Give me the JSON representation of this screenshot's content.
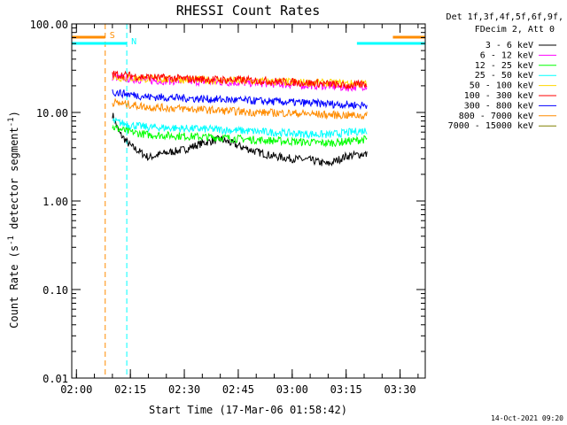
{
  "chart_data": {
    "type": "line",
    "title": "RHESSI Count Rates",
    "xlabel": "Start Time (17-Mar-06 01:58:42)",
    "ylabel": "Count Rate (s⁻¹ detector segment⁻¹)",
    "y_scale": "log",
    "ylim": [
      0.01,
      100
    ],
    "xlim": [
      "01:58:42",
      "03:37:00"
    ],
    "x_ticks": [
      "02:00",
      "02:15",
      "02:30",
      "02:45",
      "03:00",
      "03:15",
      "03:30"
    ],
    "y_ticks": [
      "0.01",
      "0.10",
      "1.00",
      "10.00",
      "100.00"
    ],
    "legend_header": [
      "Det 1f,3f,4f,5f,6f,9f,",
      "FDecim 2, Att 0"
    ],
    "legend_position": "outside-right",
    "timestamp": "14-Oct-2021 09:20",
    "series": [
      {
        "name": "3 - 6 keV",
        "color": "#000000",
        "x": [
          "02:10",
          "02:12",
          "02:15",
          "02:20",
          "02:25",
          "02:30",
          "02:35",
          "02:40",
          "02:45",
          "02:50",
          "02:55",
          "03:00",
          "03:05",
          "03:10",
          "03:15",
          "03:20",
          "03:21"
        ],
        "values": [
          9.5,
          5.8,
          4.2,
          3.1,
          3.5,
          3.8,
          4.5,
          5.0,
          4.2,
          3.6,
          3.2,
          3.0,
          2.9,
          2.6,
          3.2,
          3.4,
          3.3
        ]
      },
      {
        "name": "6 - 12 keV",
        "color": "#ff00ff",
        "x": [
          "02:10",
          "02:20",
          "02:30",
          "02:40",
          "02:50",
          "03:00",
          "03:10",
          "03:15",
          "03:21"
        ],
        "values": [
          25,
          23,
          22.5,
          22,
          21.5,
          20.5,
          20,
          19,
          20
        ]
      },
      {
        "name": "12 - 25 keV",
        "color": "#00ff00",
        "x": [
          "02:10",
          "02:15",
          "02:20",
          "02:30",
          "02:40",
          "02:50",
          "03:00",
          "03:10",
          "03:15",
          "03:21"
        ],
        "values": [
          6.8,
          6.0,
          5.6,
          5.4,
          5.2,
          4.9,
          4.7,
          4.5,
          4.7,
          5.0
        ]
      },
      {
        "name": "25 - 50 keV",
        "color": "#00ffff",
        "x": [
          "02:10",
          "02:15",
          "02:20",
          "02:30",
          "02:40",
          "02:50",
          "03:00",
          "03:10",
          "03:15",
          "03:21"
        ],
        "values": [
          8.0,
          7.2,
          6.8,
          6.6,
          6.4,
          6.1,
          5.8,
          5.6,
          5.9,
          6.3
        ]
      },
      {
        "name": "50 - 100 keV",
        "color": "#ffd700",
        "x": [
          "02:10",
          "02:20",
          "02:30",
          "02:40",
          "02:50",
          "03:00",
          "03:10",
          "03:21"
        ],
        "values": [
          25,
          24,
          23.5,
          23,
          22.5,
          22,
          21.5,
          21
        ]
      },
      {
        "name": "100 - 300 keV",
        "color": "#ff0000",
        "x": [
          "02:10",
          "02:20",
          "02:30",
          "02:40",
          "02:50",
          "03:00",
          "03:10",
          "03:15",
          "03:21"
        ],
        "values": [
          27,
          25,
          24,
          23.5,
          23,
          22,
          21,
          20,
          21
        ]
      },
      {
        "name": "300 - 800 keV",
        "color": "#0000ff",
        "x": [
          "02:10",
          "02:20",
          "02:30",
          "02:40",
          "02:50",
          "03:00",
          "03:10",
          "03:21"
        ],
        "values": [
          17,
          15,
          14.5,
          14,
          13.5,
          13,
          12.5,
          12
        ]
      },
      {
        "name": "800 - 7000 keV",
        "color": "#ff8c00",
        "x": [
          "02:10",
          "02:20",
          "02:30",
          "02:40",
          "02:50",
          "03:00",
          "03:10",
          "03:21"
        ],
        "values": [
          13,
          11.5,
          11,
          10.5,
          10,
          9.8,
          9.4,
          9.2
        ]
      },
      {
        "name": "7000 - 15000 keV",
        "color": "#808000",
        "x": [],
        "values": []
      }
    ],
    "attenuator_markers": [
      {
        "label": "S",
        "color": "#ff8c00",
        "start": "02:08",
        "end": "03:28"
      },
      {
        "label": "N",
        "color": "#00ffff",
        "start": "02:14",
        "end": "03:18"
      }
    ]
  }
}
